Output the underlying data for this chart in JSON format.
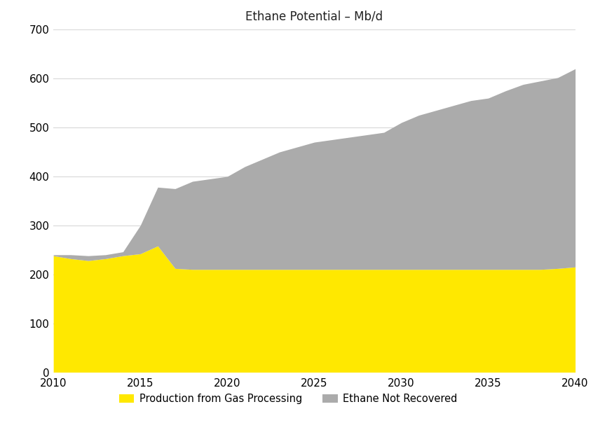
{
  "title": "Ethane Potential – Mb/d",
  "title_fontsize": 12,
  "xlim": [
    2010,
    2040
  ],
  "ylim": [
    0,
    700
  ],
  "yticks": [
    0,
    100,
    200,
    300,
    400,
    500,
    600,
    700
  ],
  "xticks": [
    2010,
    2015,
    2020,
    2025,
    2030,
    2035,
    2040
  ],
  "years": [
    2010,
    2011,
    2012,
    2013,
    2014,
    2015,
    2016,
    2017,
    2018,
    2019,
    2020,
    2021,
    2022,
    2023,
    2024,
    2025,
    2026,
    2027,
    2028,
    2029,
    2030,
    2031,
    2032,
    2033,
    2034,
    2035,
    2036,
    2037,
    2038,
    2039,
    2040
  ],
  "production_gas_processing": [
    238,
    232,
    228,
    232,
    238,
    242,
    258,
    212,
    210,
    210,
    210,
    210,
    210,
    210,
    210,
    210,
    210,
    210,
    210,
    210,
    210,
    210,
    210,
    210,
    210,
    210,
    210,
    210,
    210,
    212,
    215
  ],
  "ethane_not_recovered": [
    2,
    8,
    10,
    8,
    8,
    58,
    120,
    163,
    180,
    185,
    190,
    210,
    225,
    240,
    250,
    260,
    265,
    270,
    275,
    280,
    300,
    315,
    325,
    335,
    345,
    350,
    365,
    378,
    385,
    390,
    405
  ],
  "color_yellow": "#FFE800",
  "color_gray": "#ABABAB",
  "legend_labels": [
    "Production from Gas Processing",
    "Ethane Not Recovered"
  ],
  "background_color": "#FFFFFF",
  "grid_color": "#D8D8D8",
  "tick_fontsize": 11,
  "legend_fontsize": 10.5
}
